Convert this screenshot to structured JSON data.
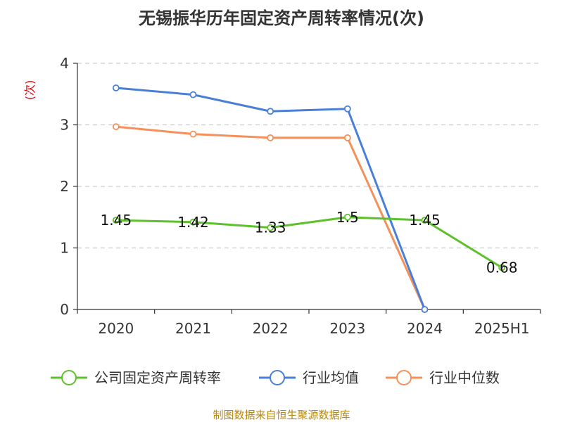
{
  "chart_data": {
    "type": "line",
    "title": "无锡振华历年固定资产周转率情况(次)",
    "ylabel": "(次)",
    "xlabel": "",
    "categories": [
      "2020",
      "2021",
      "2022",
      "2023",
      "2024",
      "2025H1"
    ],
    "y_ticks": [
      0,
      1,
      2,
      3,
      4
    ],
    "ylim": [
      0,
      4
    ],
    "grid": true,
    "legend_position": "bottom",
    "series": [
      {
        "name": "公司固定资产周转率",
        "color": "#5cc12a",
        "values": [
          1.45,
          1.42,
          1.33,
          1.5,
          1.45,
          0.68
        ],
        "labels": [
          "1.45",
          "1.42",
          "1.33",
          "1.5",
          "1.45",
          "0.68"
        ]
      },
      {
        "name": "行业均值",
        "color": "#4a7fd8",
        "values": [
          3.6,
          3.49,
          3.22,
          3.26,
          0,
          null
        ]
      },
      {
        "name": "行业中位数",
        "color": "#f5905a",
        "values": [
          2.97,
          2.85,
          2.79,
          2.79,
          0,
          null
        ]
      }
    ]
  },
  "source": "制图数据来自恒生聚源数据库"
}
